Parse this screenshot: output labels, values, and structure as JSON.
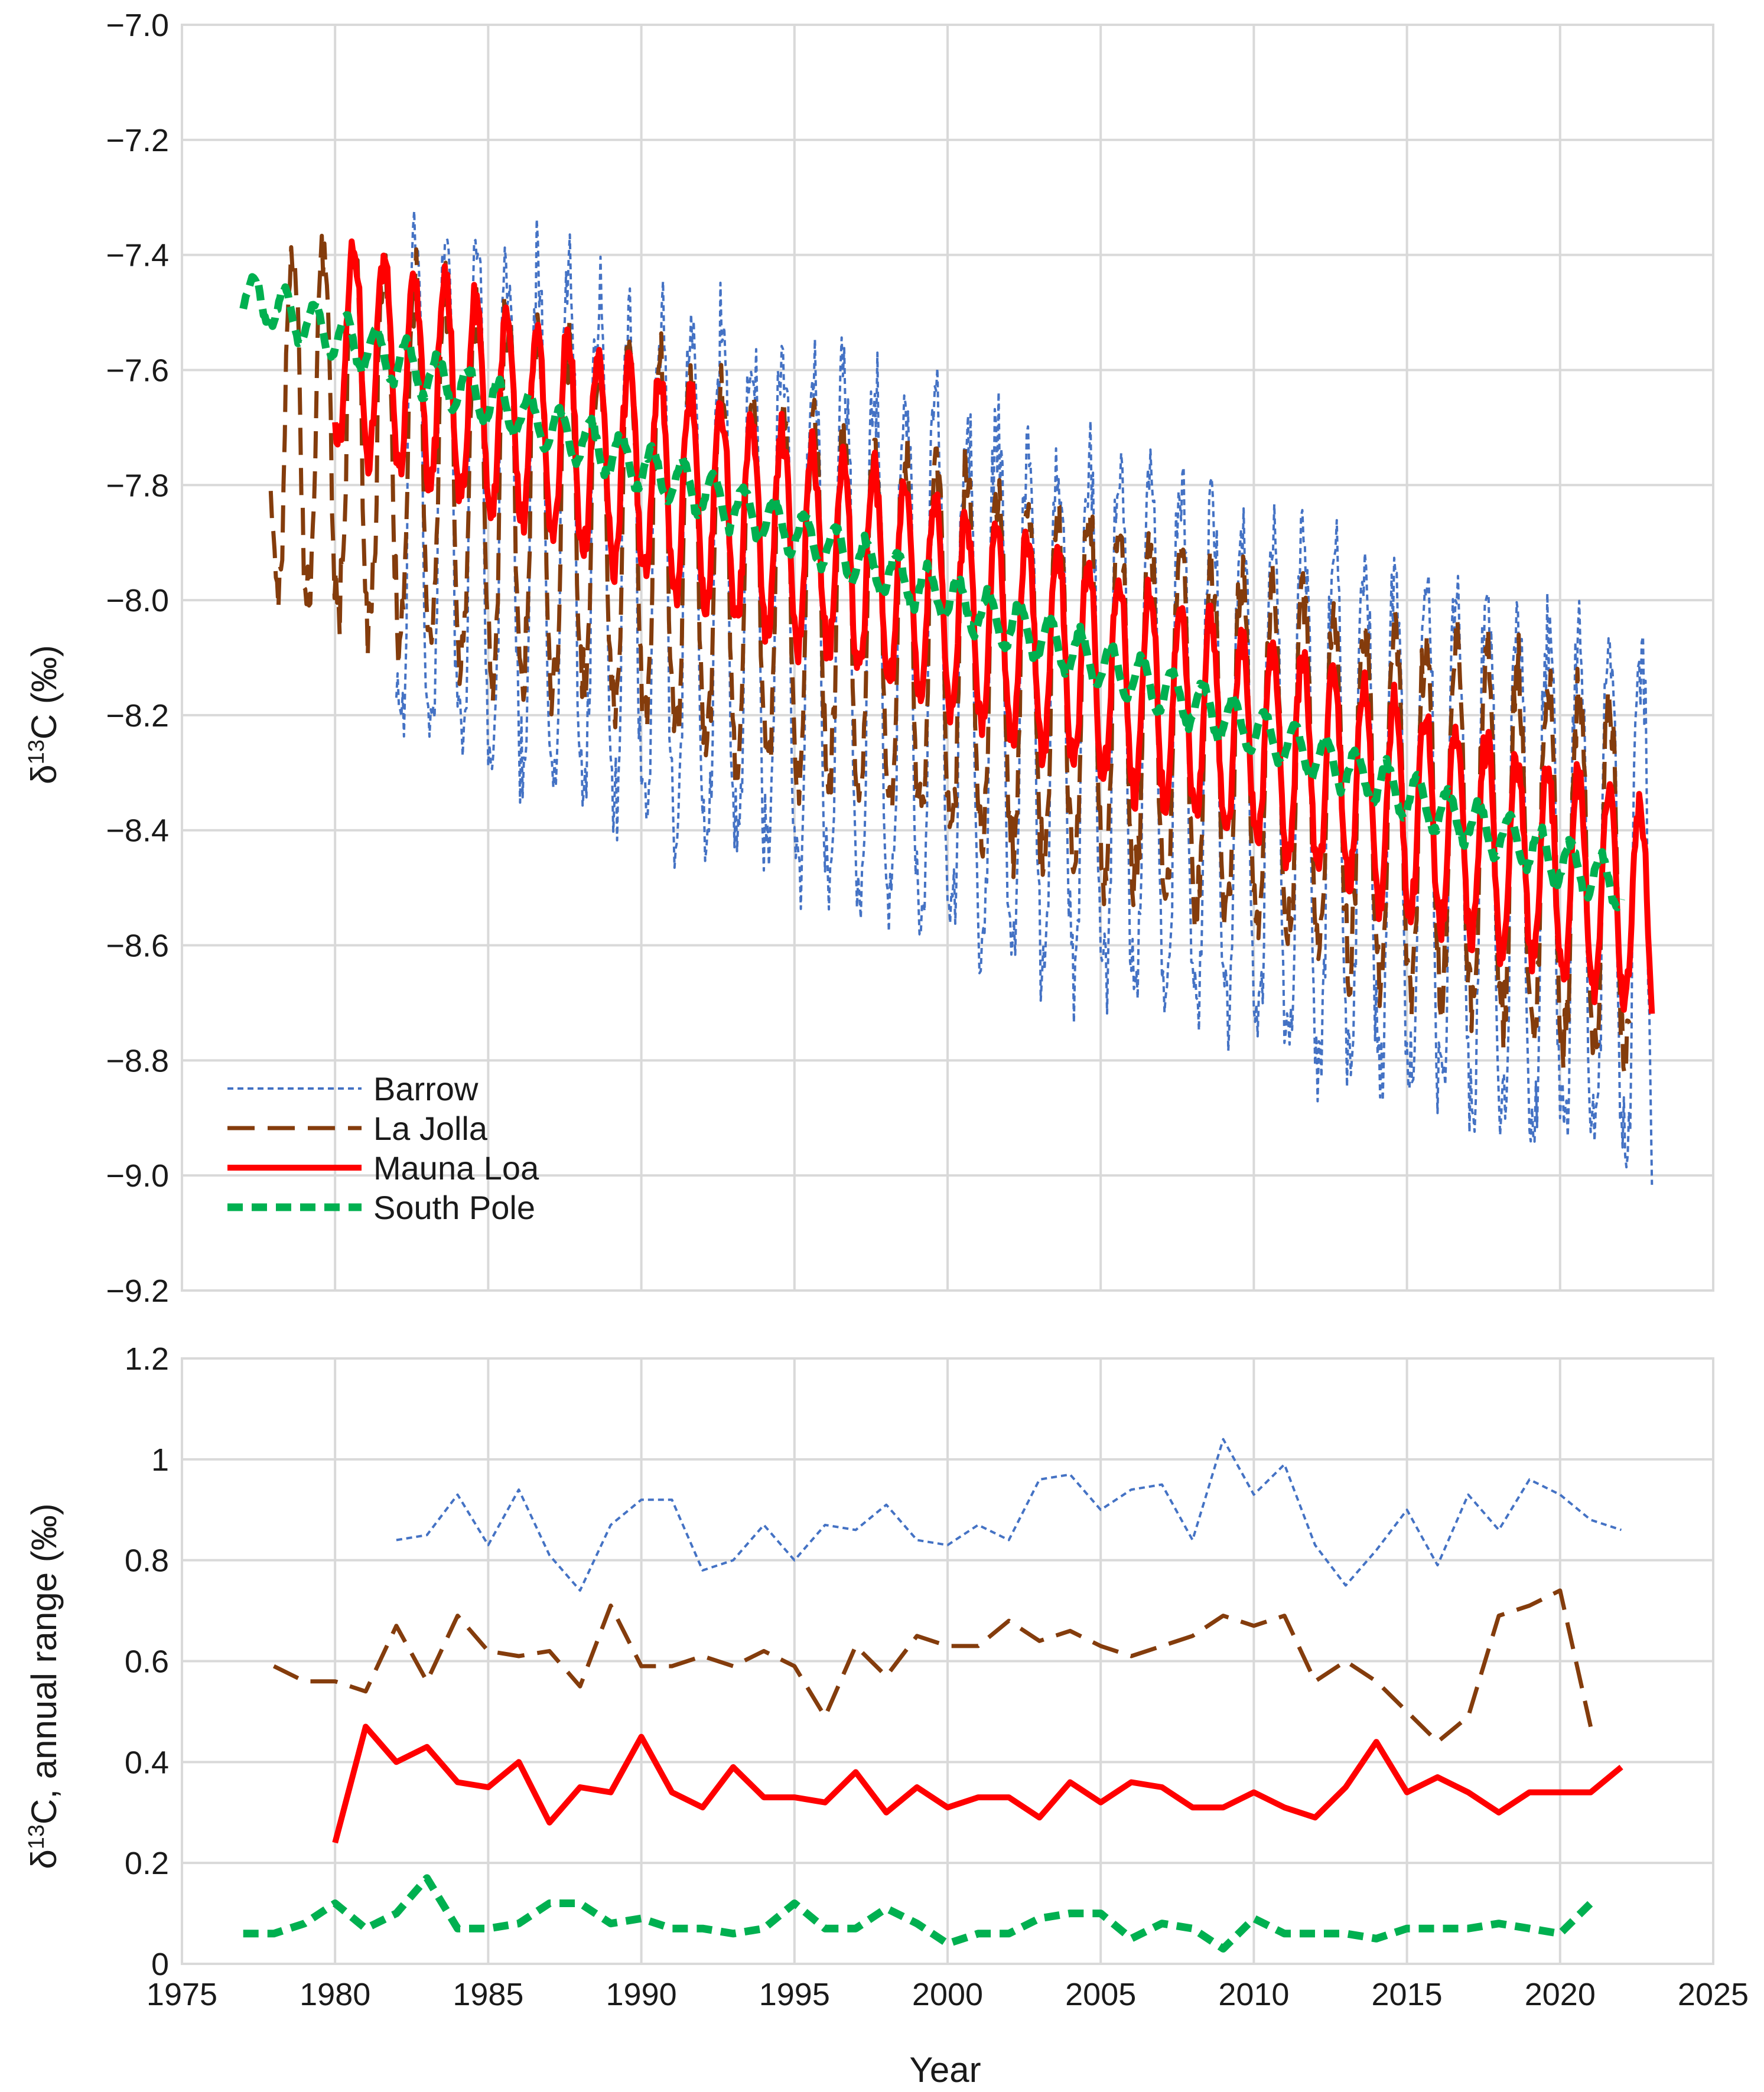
{
  "chart_data": [
    {
      "type": "line",
      "title": "",
      "ylabel": "δ13C (‰)",
      "ylabel_base": "δ",
      "ylabel_sup": "13",
      "ylabel_rest": "C (‰)",
      "xlabel": "",
      "xlim": [
        1975,
        2025
      ],
      "ylim": [
        -9.2,
        -7.0
      ],
      "yticks": [
        -7.0,
        -7.2,
        -7.4,
        -7.6,
        -7.8,
        -8.0,
        -8.2,
        -8.4,
        -8.6,
        -8.8,
        -9.0,
        -9.2
      ],
      "ytick_labels": [
        "−7.0",
        "−7.2",
        "−7.4",
        "−7.6",
        "−7.8",
        "−8.0",
        "−8.2",
        "−8.4",
        "−8.6",
        "−8.8",
        "−9.0",
        "−9.2"
      ],
      "grid": true,
      "legend": "bottom-left",
      "series": [
        {
          "name": "Barrow",
          "color": "#4472c4",
          "style": "dotted",
          "start": 1982.0,
          "end": 2023.0,
          "trend_start": -7.78,
          "trend_end": -8.55,
          "amplitude": 0.87,
          "phase": 0.62,
          "sharpness": 2.3
        },
        {
          "name": "La Jolla",
          "color": "#843c0c",
          "style": "long-dash",
          "start": 1977.9,
          "end": 2022.3,
          "trend_start": -7.67,
          "trend_end": -8.5,
          "amplitude": 0.61,
          "phase": 0.62,
          "sharpness": 1.6
        },
        {
          "name": "Mauna Loa",
          "color": "#ff0000",
          "style": "solid",
          "start": 1980.0,
          "end": 2023.0,
          "trend_start": -7.55,
          "trend_end": -8.55,
          "amplitude": 0.35,
          "phase": 0.6,
          "sharpness": 1.3
        },
        {
          "name": "South Pole",
          "color": "#00b050",
          "style": "dashed",
          "start": 1977.0,
          "end": 2022.0,
          "trend_start": -7.47,
          "trend_end": -8.5,
          "amplitude": 0.08,
          "phase": 0.35,
          "sharpness": 1.0
        }
      ]
    },
    {
      "type": "line",
      "title": "",
      "ylabel": "δ13C, annual range (‰)",
      "ylabel_base": "δ",
      "ylabel_sup": "13",
      "ylabel_rest": "C, annual range (‰)",
      "xlabel": "Year",
      "xlim": [
        1975,
        2025
      ],
      "ylim": [
        0,
        1.2
      ],
      "xticks": [
        1975,
        1980,
        1985,
        1990,
        1995,
        2000,
        2005,
        2010,
        2015,
        2020,
        2025
      ],
      "xtick_labels": [
        "1975",
        "1980",
        "1985",
        "1990",
        "1995",
        "2000",
        "2005",
        "2010",
        "2015",
        "2020",
        "2025"
      ],
      "yticks": [
        0,
        0.2,
        0.4,
        0.6,
        0.8,
        1.0,
        1.2
      ],
      "ytick_labels": [
        "0",
        "0.2",
        "0.4",
        "0.6",
        "0.8",
        "1",
        "1.2"
      ],
      "grid": true,
      "series": [
        {
          "name": "Barrow",
          "color": "#4472c4",
          "style": "dotted",
          "x": [
            1982,
            1983,
            1984,
            1985,
            1986,
            1987,
            1988,
            1989,
            1990,
            1991,
            1992,
            1993,
            1994,
            1995,
            1996,
            1997,
            1998,
            1999,
            2000,
            2001,
            2002,
            2003,
            2004,
            2005,
            2006,
            2007,
            2008,
            2009,
            2010,
            2011,
            2012,
            2013,
            2014,
            2015,
            2016,
            2017,
            2018,
            2019,
            2020,
            2021,
            2022
          ],
          "values": [
            0.84,
            0.85,
            0.93,
            0.83,
            0.94,
            0.81,
            0.74,
            0.87,
            0.92,
            0.92,
            0.78,
            0.8,
            0.87,
            0.8,
            0.87,
            0.86,
            0.91,
            0.84,
            0.83,
            0.87,
            0.84,
            0.96,
            0.97,
            0.9,
            0.94,
            0.95,
            0.84,
            1.04,
            0.93,
            0.99,
            0.83,
            0.75,
            0.82,
            0.9,
            0.79,
            0.93,
            0.86,
            0.96,
            0.93,
            0.88,
            0.86
          ]
        },
        {
          "name": "La Jolla",
          "color": "#843c0c",
          "style": "long-dash",
          "x": [
            1978,
            1979,
            1980,
            1981,
            1982,
            1983,
            1984,
            1985,
            1986,
            1987,
            1988,
            1989,
            1990,
            1991,
            1992,
            1993,
            1994,
            1995,
            1996,
            1997,
            1998,
            1999,
            2000,
            2001,
            2002,
            2003,
            2004,
            2005,
            2006,
            2007,
            2008,
            2009,
            2010,
            2011,
            2012,
            2013,
            2014,
            2015,
            2016,
            2017,
            2018,
            2019,
            2020,
            2021
          ],
          "values": [
            0.59,
            0.56,
            0.56,
            0.54,
            0.67,
            0.56,
            0.69,
            0.62,
            0.61,
            0.62,
            0.55,
            0.71,
            0.59,
            0.59,
            0.61,
            0.59,
            0.62,
            0.59,
            0.49,
            0.63,
            0.57,
            0.65,
            0.63,
            0.63,
            0.68,
            0.64,
            0.66,
            0.63,
            0.61,
            0.63,
            0.65,
            0.69,
            0.67,
            0.69,
            0.56,
            0.6,
            0.56,
            0.5,
            0.44,
            0.49,
            0.69,
            0.71,
            0.74,
            0.47
          ]
        },
        {
          "name": "Mauna Loa",
          "color": "#ff0000",
          "style": "solid",
          "x": [
            1980,
            1981,
            1982,
            1983,
            1984,
            1985,
            1986,
            1987,
            1988,
            1989,
            1990,
            1991,
            1992,
            1993,
            1994,
            1995,
            1996,
            1997,
            1998,
            1999,
            2000,
            2001,
            2002,
            2003,
            2004,
            2005,
            2006,
            2007,
            2008,
            2009,
            2010,
            2011,
            2012,
            2013,
            2014,
            2015,
            2016,
            2017,
            2018,
            2019,
            2020,
            2021,
            2022
          ],
          "values": [
            0.24,
            0.47,
            0.4,
            0.43,
            0.36,
            0.35,
            0.4,
            0.28,
            0.35,
            0.34,
            0.45,
            0.34,
            0.31,
            0.39,
            0.33,
            0.33,
            0.32,
            0.38,
            0.3,
            0.35,
            0.31,
            0.33,
            0.33,
            0.29,
            0.36,
            0.32,
            0.36,
            0.35,
            0.31,
            0.31,
            0.34,
            0.31,
            0.29,
            0.35,
            0.44,
            0.34,
            0.37,
            0.34,
            0.3,
            0.34,
            0.34,
            0.34,
            0.39
          ]
        },
        {
          "name": "South Pole",
          "color": "#00b050",
          "style": "dashed",
          "x": [
            1977,
            1978,
            1979,
            1980,
            1981,
            1982,
            1983,
            1984,
            1985,
            1986,
            1987,
            1988,
            1989,
            1990,
            1991,
            1992,
            1993,
            1994,
            1995,
            1996,
            1997,
            1998,
            1999,
            2000,
            2001,
            2002,
            2003,
            2004,
            2005,
            2006,
            2007,
            2008,
            2009,
            2010,
            2011,
            2012,
            2013,
            2014,
            2015,
            2016,
            2017,
            2018,
            2019,
            2020,
            2021
          ],
          "values": [
            0.06,
            0.06,
            0.08,
            0.12,
            0.07,
            0.1,
            0.17,
            0.07,
            0.07,
            0.08,
            0.12,
            0.12,
            0.08,
            0.09,
            0.07,
            0.07,
            0.06,
            0.07,
            0.12,
            0.07,
            0.07,
            0.11,
            0.08,
            0.04,
            0.06,
            0.06,
            0.09,
            0.1,
            0.1,
            0.05,
            0.08,
            0.07,
            0.03,
            0.09,
            0.06,
            0.06,
            0.06,
            0.05,
            0.07,
            0.07,
            0.07,
            0.08,
            0.07,
            0.06,
            0.12
          ]
        }
      ]
    }
  ]
}
